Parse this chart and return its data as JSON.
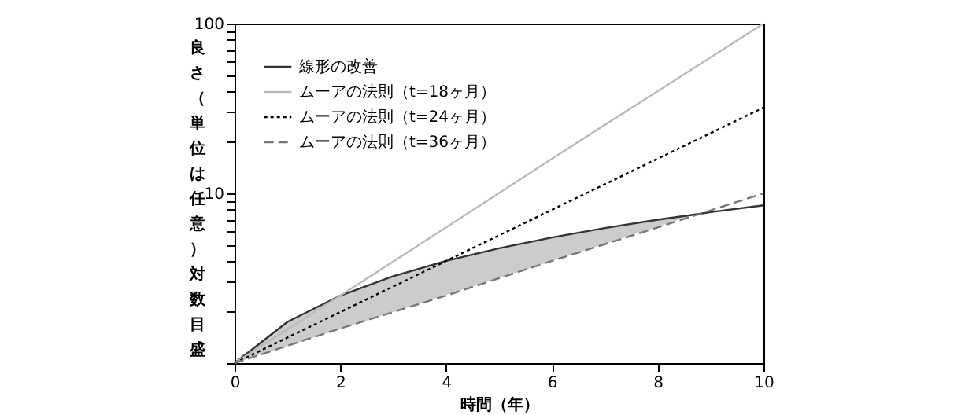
{
  "chart_data": {
    "type": "line",
    "xlabel": "時間（年）",
    "ylabel": "良さ（単位は任意）対数目盛",
    "log": "y",
    "xlim": [
      0,
      10
    ],
    "ylim": [
      1,
      100
    ],
    "xticks": [
      0,
      2,
      4,
      6,
      8,
      10
    ],
    "yticks": [
      {
        "value": 1,
        "label": null
      },
      {
        "value": 2,
        "label": null
      },
      {
        "value": 3,
        "label": null
      },
      {
        "value": 4,
        "label": null
      },
      {
        "value": 5,
        "label": null
      },
      {
        "value": 6,
        "label": null
      },
      {
        "value": 7,
        "label": null
      },
      {
        "value": 8,
        "label": null
      },
      {
        "value": 9,
        "label": null
      },
      10,
      {
        "value": 20,
        "label": null
      },
      {
        "value": 30,
        "label": null
      },
      {
        "value": 40,
        "label": null
      },
      {
        "value": 50,
        "label": null
      },
      {
        "value": 60,
        "label": null
      },
      {
        "value": 70,
        "label": null
      },
      {
        "value": 80,
        "label": null
      },
      {
        "value": 90,
        "label": null
      },
      100
    ],
    "grid": false,
    "legend": "top left",
    "marker": "none",
    "series": [
      {
        "name": "線形の改善",
        "color": "#333333",
        "line_style": "solid",
        "x": [
          0,
          1,
          2,
          3,
          4,
          5,
          6,
          7,
          8,
          8.7,
          9,
          10
        ],
        "values": [
          1,
          1.75,
          2.5,
          3.25,
          4,
          4.75,
          5.5,
          6.25,
          7,
          7.5,
          7.75,
          8.5
        ],
        "lower": [
          1,
          1.26,
          1.59,
          2,
          2.52,
          3.17,
          4,
          5.04,
          6.35,
          7.5,
          null,
          null
        ],
        "upper": [
          1,
          1.75,
          2.5,
          3.25,
          4,
          4.75,
          5.5,
          6.25,
          7,
          7.5,
          null,
          null
        ]
      },
      {
        "name": "ムーアの法則（t=18ヶ月）",
        "color": "#bbbbbb",
        "line_style": "solid",
        "x": [
          0,
          2,
          4,
          6,
          8,
          10
        ],
        "values": [
          1,
          2.5,
          6.3,
          16,
          40,
          100
        ]
      },
      {
        "name": "ムーアの法則（t=24ヶ月）",
        "color": "#000000",
        "line_style": "dotted",
        "x": [
          0,
          2,
          4,
          6,
          8,
          10
        ],
        "values": [
          1,
          2,
          4,
          8,
          16,
          32
        ]
      },
      {
        "name": "ムーアの法則（t=36ヶ月）",
        "color": "#777777",
        "line_style": "dashed",
        "x": [
          0,
          2,
          4,
          6,
          8,
          10
        ],
        "values": [
          1,
          1.6,
          2.5,
          4,
          6.3,
          10
        ]
      }
    ]
  }
}
